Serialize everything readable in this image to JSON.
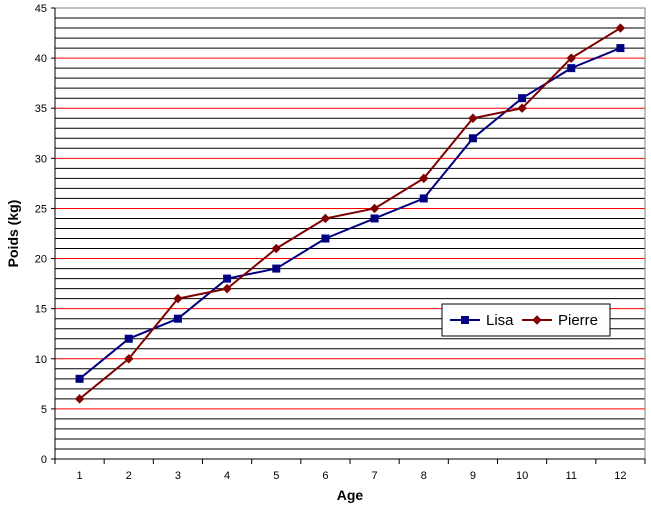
{
  "chart_data": {
    "type": "line",
    "title": "",
    "xlabel": "Age",
    "ylabel": "Poids (kg)",
    "categories": [
      "1",
      "2",
      "3",
      "4",
      "5",
      "6",
      "7",
      "8",
      "9",
      "10",
      "11",
      "12"
    ],
    "ylim": [
      0,
      45
    ],
    "y_major_ticks": [
      0,
      5,
      10,
      15,
      20,
      25,
      30,
      35,
      40,
      45
    ],
    "y_minor_step": 1,
    "grid": true,
    "grid_colors": {
      "major": "#ff0000",
      "minor": "#000000"
    },
    "legend_position": "right",
    "series": [
      {
        "name": "Lisa",
        "color": "#000080",
        "marker": "square",
        "values": [
          8,
          12,
          14,
          18,
          19,
          22,
          24,
          26,
          32,
          36,
          39,
          41
        ]
      },
      {
        "name": "Pierre",
        "color": "#800000",
        "marker": "diamond",
        "values": [
          6,
          10,
          16,
          17,
          21,
          24,
          25,
          28,
          34,
          35,
          40,
          43
        ]
      }
    ]
  }
}
